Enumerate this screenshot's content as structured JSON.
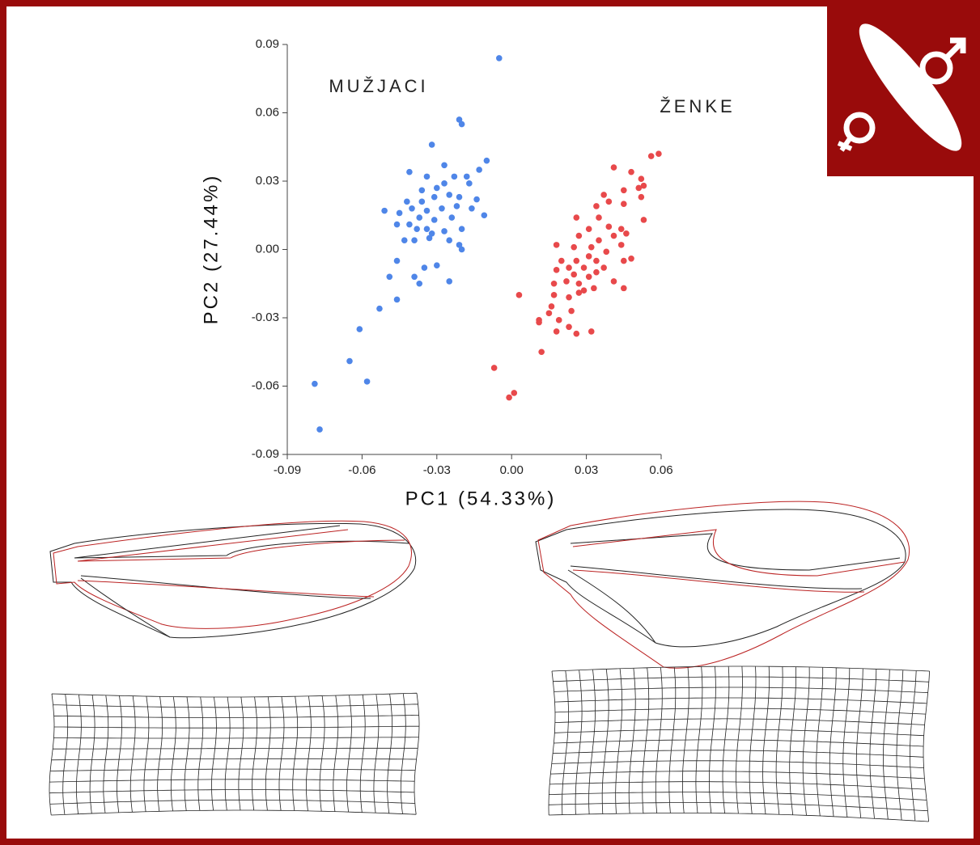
{
  "chart_data": {
    "type": "scatter",
    "xlabel": "PC1 (54.33%)",
    "ylabel": "PC2 (27.44%)",
    "xlim": [
      -0.09,
      0.06
    ],
    "xticks": [
      -0.09,
      -0.06,
      -0.03,
      {
        "value": 0,
        "label": "0.00"
      },
      0.03,
      0.06
    ],
    "ylim": [
      -0.09,
      0.09
    ],
    "yticks": [
      -0.09,
      -0.06,
      -0.03,
      {
        "value": 0,
        "label": "0.00"
      },
      0.03,
      0.06,
      0.09
    ],
    "series": [
      {
        "name": "MUŽJACI",
        "color": "#4f86e8",
        "x": [
          -0.005,
          -0.021,
          -0.02,
          -0.032,
          -0.01,
          -0.013,
          -0.027,
          -0.041,
          -0.034,
          -0.023,
          -0.018,
          -0.017,
          -0.027,
          -0.03,
          -0.036,
          -0.042,
          -0.036,
          -0.031,
          -0.025,
          -0.021,
          -0.014,
          -0.051,
          -0.045,
          -0.04,
          -0.034,
          -0.028,
          -0.022,
          -0.016,
          -0.011,
          -0.024,
          -0.031,
          -0.037,
          -0.041,
          -0.046,
          -0.038,
          -0.034,
          -0.032,
          -0.027,
          -0.02,
          -0.043,
          -0.039,
          -0.033,
          -0.025,
          -0.021,
          -0.02,
          -0.046,
          -0.03,
          -0.035,
          -0.049,
          -0.039,
          -0.037,
          -0.025,
          -0.046,
          -0.053,
          -0.061,
          -0.065,
          -0.058,
          -0.079,
          -0.077
        ],
        "values": [
          0.084,
          0.057,
          0.055,
          0.046,
          0.039,
          0.035,
          0.037,
          0.034,
          0.032,
          0.032,
          0.032,
          0.029,
          0.029,
          0.027,
          0.026,
          0.021,
          0.021,
          0.023,
          0.024,
          0.023,
          0.022,
          0.017,
          0.016,
          0.018,
          0.017,
          0.018,
          0.019,
          0.018,
          0.015,
          0.014,
          0.013,
          0.014,
          0.011,
          0.011,
          0.009,
          0.009,
          0.007,
          0.008,
          0.009,
          0.004,
          0.004,
          0.005,
          0.004,
          0.002,
          0.0,
          -0.005,
          -0.007,
          -0.008,
          -0.012,
          -0.012,
          -0.015,
          -0.014,
          -0.022,
          -0.026,
          -0.035,
          -0.049,
          -0.058,
          -0.059,
          -0.079
        ]
      },
      {
        "name": "ŽENKE",
        "color": "#e8494b",
        "x": [
          0.059,
          0.056,
          0.052,
          0.053,
          0.041,
          0.048,
          0.051,
          0.045,
          0.037,
          0.052,
          0.039,
          0.045,
          0.034,
          0.026,
          0.035,
          0.053,
          0.031,
          0.039,
          0.044,
          0.046,
          0.027,
          0.035,
          0.041,
          0.018,
          0.025,
          0.032,
          0.044,
          0.038,
          0.031,
          0.02,
          0.026,
          0.034,
          0.045,
          0.048,
          0.023,
          0.029,
          0.037,
          0.018,
          0.034,
          0.025,
          0.031,
          0.017,
          0.022,
          0.027,
          0.041,
          0.033,
          0.045,
          0.029,
          0.003,
          0.017,
          0.027,
          0.023,
          0.016,
          0.024,
          0.015,
          0.011,
          0.019,
          0.011,
          0.023,
          0.032,
          0.018,
          0.026,
          0.012,
          -0.007,
          0.001,
          -0.001
        ],
        "values": [
          0.042,
          0.041,
          0.031,
          0.028,
          0.036,
          0.034,
          0.027,
          0.026,
          0.024,
          0.023,
          0.021,
          0.02,
          0.019,
          0.014,
          0.014,
          0.013,
          0.009,
          0.01,
          0.009,
          0.007,
          0.006,
          0.004,
          0.006,
          0.002,
          0.001,
          0.001,
          0.002,
          -0.001,
          -0.003,
          -0.005,
          -0.005,
          -0.005,
          -0.005,
          -0.004,
          -0.008,
          -0.008,
          -0.008,
          -0.009,
          -0.01,
          -0.011,
          -0.012,
          -0.015,
          -0.014,
          -0.015,
          -0.014,
          -0.017,
          -0.017,
          -0.018,
          -0.02,
          -0.02,
          -0.019,
          -0.021,
          -0.025,
          -0.027,
          -0.028,
          -0.031,
          -0.031,
          -0.032,
          -0.034,
          -0.036,
          -0.036,
          -0.037,
          -0.045,
          -0.052,
          -0.063,
          -0.065
        ]
      }
    ]
  }
}
